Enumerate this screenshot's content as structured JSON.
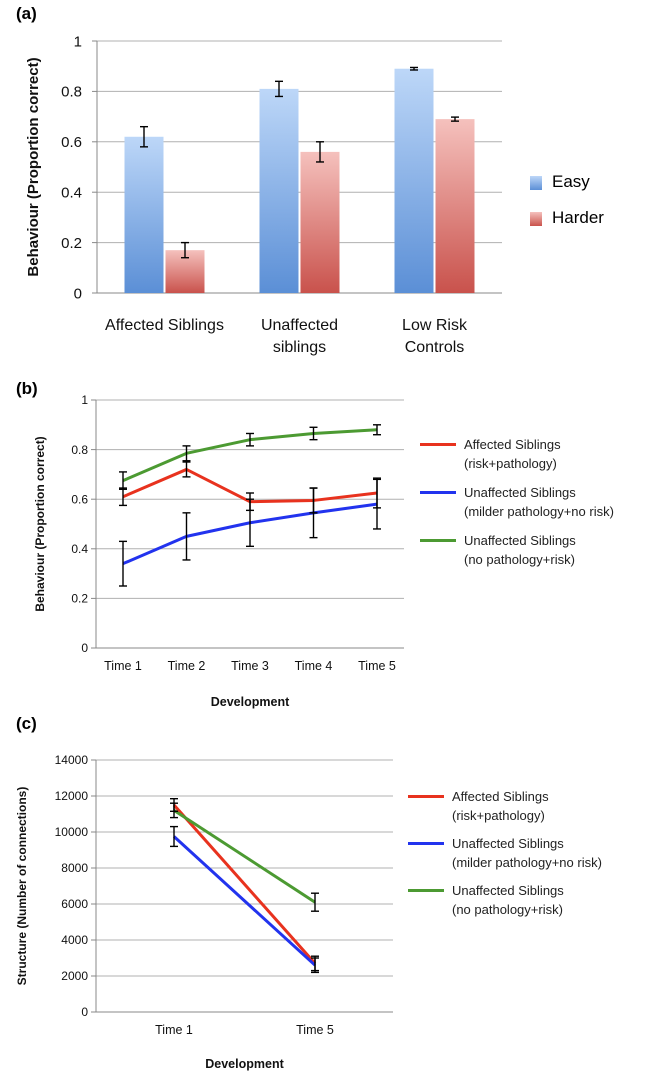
{
  "colors": {
    "easy_top": "#bdd7f8",
    "easy_bottom": "#5b8fd6",
    "harder_top": "#f5c1bd",
    "harder_bottom": "#c9524c",
    "red_line": "#e8321e",
    "blue_line": "#2233ee",
    "green_line": "#4c9a32",
    "grid": "#b0b0b0"
  },
  "chart_data": [
    {
      "id": "a",
      "panel_label": "(a)",
      "type": "bar",
      "ylabel": "Behaviour (Proportion correct)",
      "ylim": [
        0,
        1
      ],
      "yticks": [
        "0",
        "0.2",
        "0.4",
        "0.6",
        "0.8",
        "1"
      ],
      "categories": [
        [
          "Affected Siblings"
        ],
        [
          "Unaffected",
          "siblings"
        ],
        [
          "Low Risk",
          "Controls"
        ]
      ],
      "series": [
        {
          "name": "Easy",
          "values": [
            0.62,
            0.81,
            0.89
          ],
          "errors": [
            0.04,
            0.03,
            0.005
          ]
        },
        {
          "name": "Harder",
          "values": [
            0.17,
            0.56,
            0.69
          ],
          "errors": [
            0.03,
            0.04,
            0.008
          ]
        }
      ],
      "legend_position": "right",
      "grid": true
    },
    {
      "id": "b",
      "panel_label": "(b)",
      "type": "line",
      "ylabel": "Behaviour (Proportion correct)",
      "xlabel": "Development",
      "ylim": [
        0,
        1
      ],
      "yticks": [
        "0",
        "0.2",
        "0.4",
        "0.6",
        "0.8",
        "1"
      ],
      "x": [
        "Time 1",
        "Time 2",
        "Time 3",
        "Time 4",
        "Time 5"
      ],
      "series": [
        {
          "name": [
            "Affected Siblings",
            "(risk+pathology)"
          ],
          "values": [
            0.61,
            0.72,
            0.59,
            0.595,
            0.625
          ],
          "errors": [
            0.035,
            0.03,
            0.035,
            0.05,
            0.06
          ]
        },
        {
          "name": [
            "Unaffected Siblings",
            "(milder pathology+no risk)"
          ],
          "values": [
            0.34,
            0.45,
            0.505,
            0.545,
            0.58
          ],
          "errors": [
            0.09,
            0.095,
            0.095,
            0.1,
            0.1
          ]
        },
        {
          "name": [
            "Unaffected Siblings",
            "(no pathology+risk)"
          ],
          "values": [
            0.675,
            0.785,
            0.84,
            0.865,
            0.88
          ],
          "errors": [
            0.035,
            0.03,
            0.025,
            0.025,
            0.02
          ]
        }
      ],
      "legend_position": "right",
      "grid": true
    },
    {
      "id": "c",
      "panel_label": "(c)",
      "type": "line",
      "ylabel": "Structure (Number of connections)",
      "xlabel": "Development",
      "ylim": [
        0,
        14000
      ],
      "yticks": [
        "0",
        "2000",
        "4000",
        "6000",
        "8000",
        "10000",
        "12000",
        "14000"
      ],
      "x": [
        "Time 1",
        "Time 5"
      ],
      "series": [
        {
          "name": [
            "Affected Siblings",
            "(risk+pathology)"
          ],
          "values": [
            11500,
            2700
          ],
          "errors": [
            350,
            400
          ]
        },
        {
          "name": [
            "Unaffected Siblings",
            "(milder pathology+no risk)"
          ],
          "values": [
            9750,
            2600
          ],
          "errors": [
            550,
            400
          ]
        },
        {
          "name": [
            "Unaffected Siblings",
            "(no pathology+risk)"
          ],
          "values": [
            11200,
            6100
          ],
          "errors": [
            400,
            500
          ]
        }
      ],
      "legend_position": "right",
      "grid": true
    }
  ]
}
